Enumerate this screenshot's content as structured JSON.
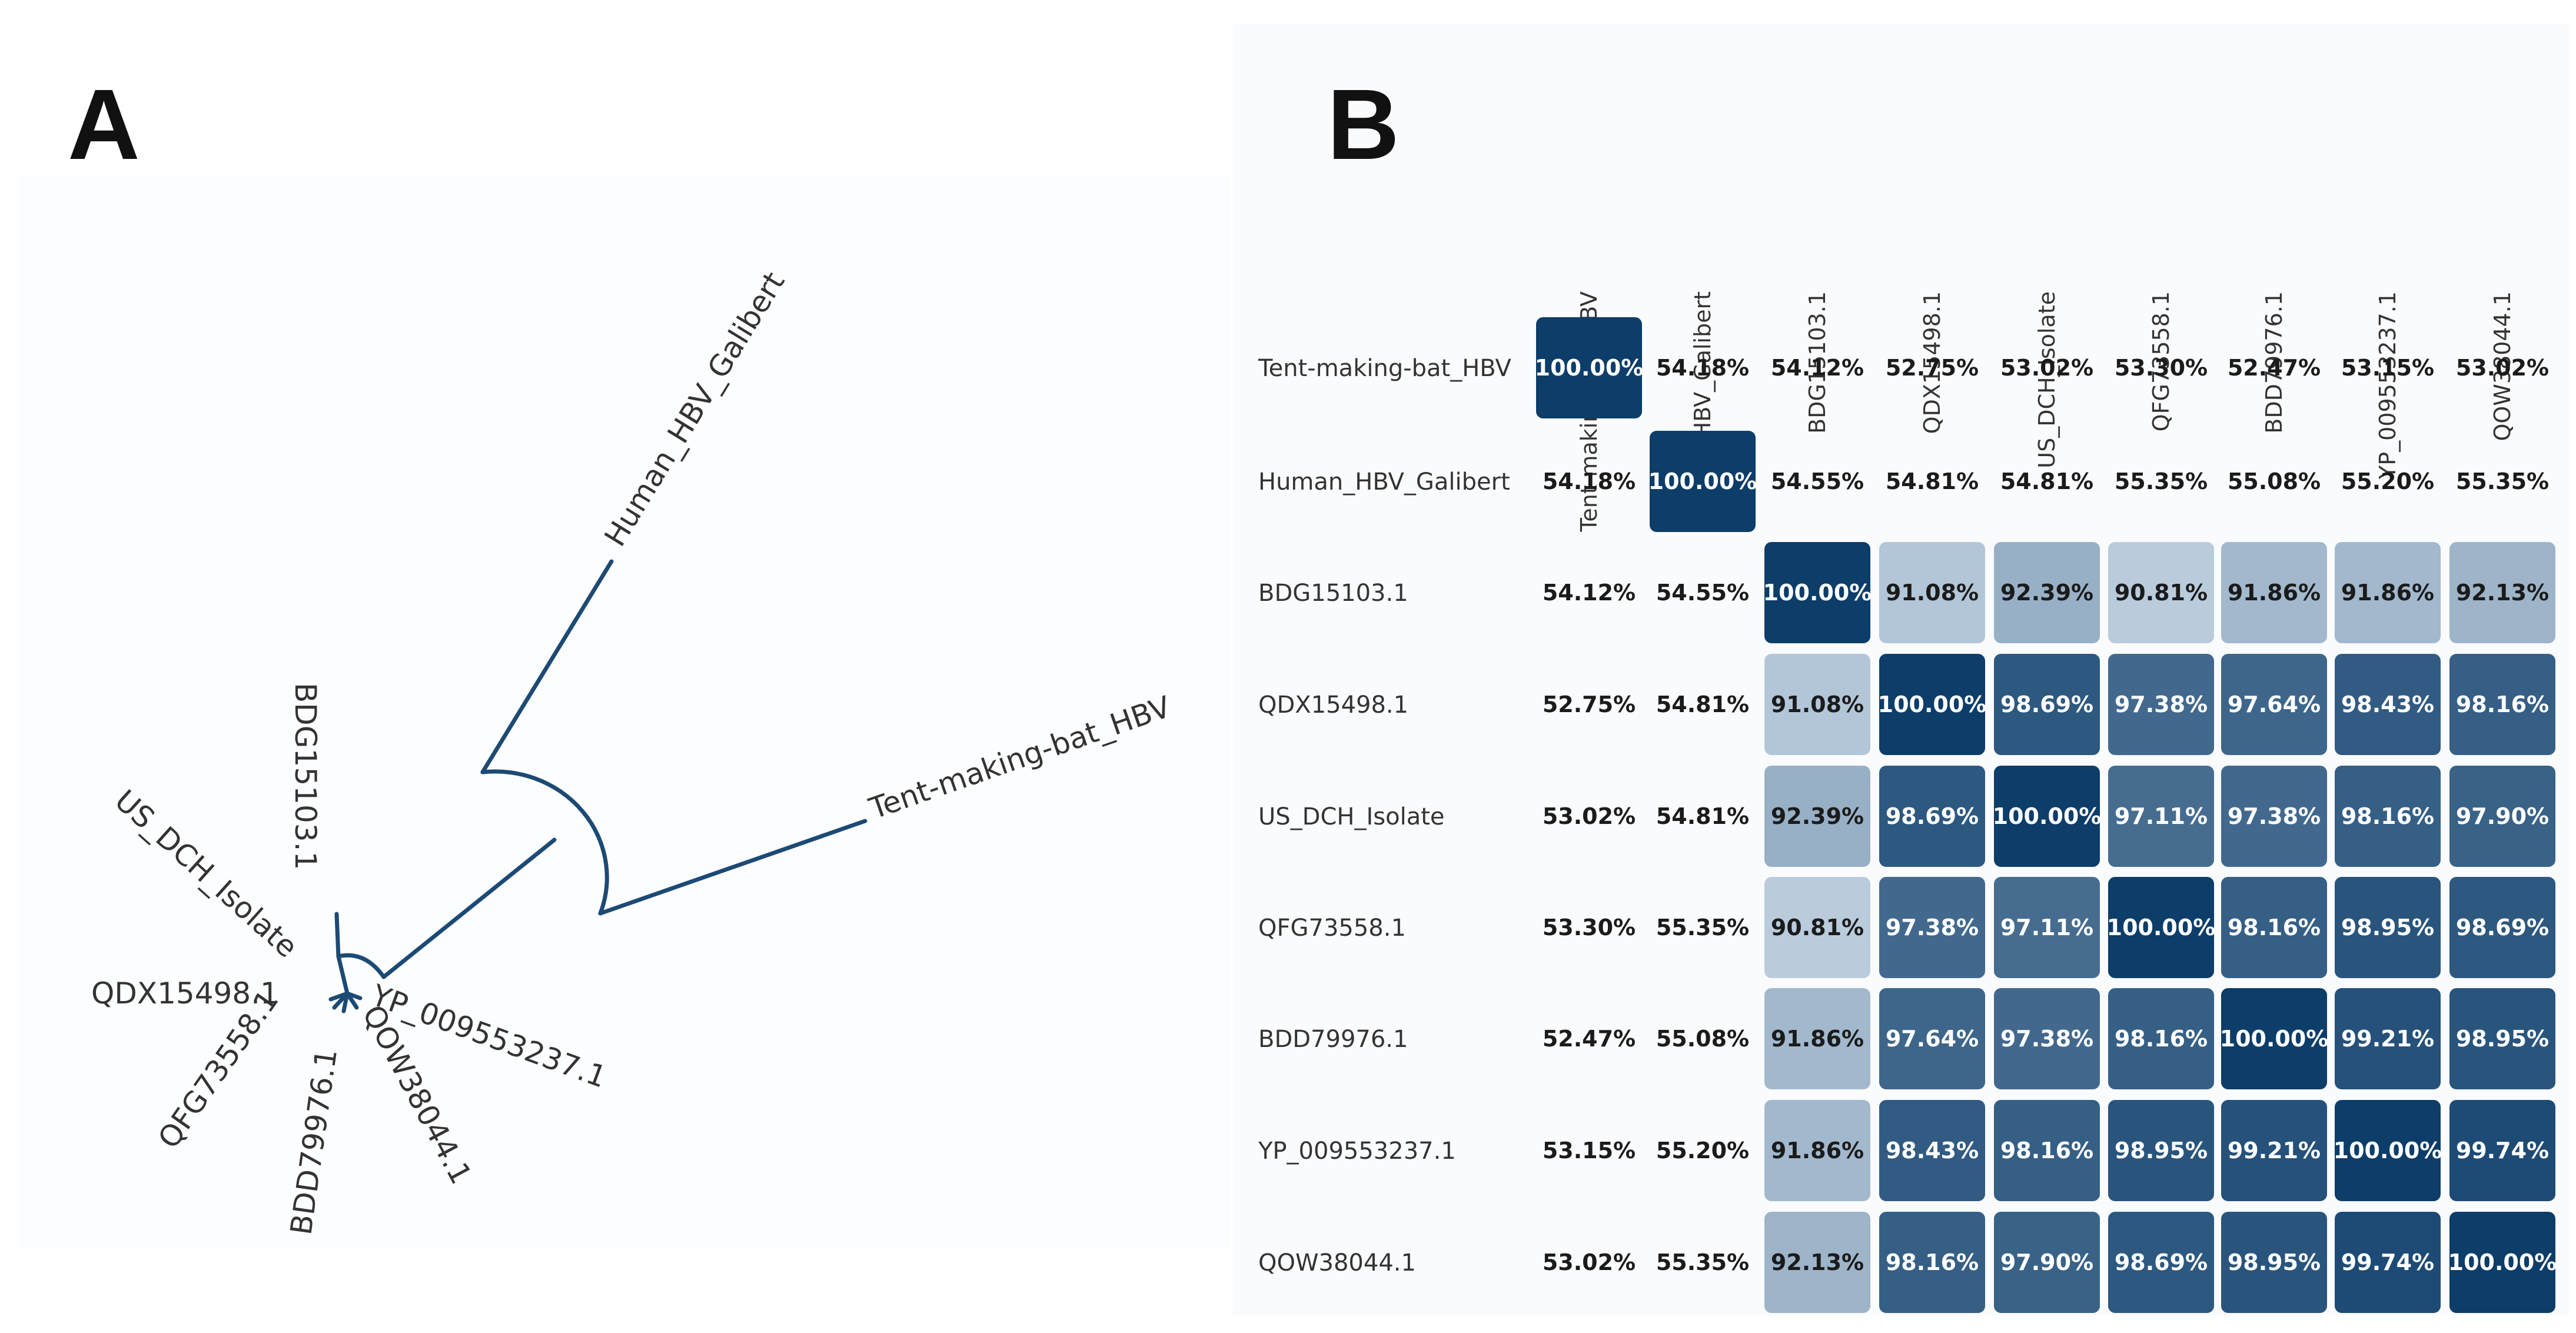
{
  "figure": {
    "panel_a_label": "A",
    "panel_b_label": "B"
  },
  "tree": {
    "labels": [
      "Human_HBV_Galibert",
      "Tent-making-bat_HBV",
      "BDG15103.1",
      "US_DCH_Isolate",
      "QDX15498.1",
      "YP_009553237.1",
      "QOW38044.1",
      "BDD79976.1",
      "QFG73558.1"
    ],
    "line_color": "#1c4a74"
  },
  "chart_data": {
    "type": "heatmap",
    "title": "",
    "value_suffix": "%",
    "rows": [
      "Tent-making-bat_HBV",
      "Human_HBV_Galibert",
      "BDG15103.1",
      "QDX15498.1",
      "US_DCH_Isolate",
      "QFG73558.1",
      "BDD79976.1",
      "YP_009553237.1",
      "QOW38044.1"
    ],
    "columns": [
      "Tent-making-bat_HBV",
      "Human_HBV_Galibert",
      "BDG15103.1",
      "QDX15498.1",
      "US_DCH_Isolate",
      "QFG73558.1",
      "BDD79976.1",
      "YP_009553237.1",
      "QOW38044.1"
    ],
    "values": [
      [
        100.0,
        54.18,
        54.12,
        52.75,
        53.02,
        53.3,
        52.47,
        53.15,
        53.02
      ],
      [
        54.18,
        100.0,
        54.55,
        54.81,
        54.81,
        55.35,
        55.08,
        55.2,
        55.35
      ],
      [
        54.12,
        54.55,
        100.0,
        91.08,
        92.39,
        90.81,
        91.86,
        91.86,
        92.13
      ],
      [
        52.75,
        54.81,
        91.08,
        100.0,
        98.69,
        97.38,
        97.64,
        98.43,
        98.16
      ],
      [
        53.02,
        54.81,
        92.39,
        98.69,
        100.0,
        97.11,
        97.38,
        98.16,
        97.9
      ],
      [
        53.3,
        55.35,
        90.81,
        97.38,
        97.11,
        100.0,
        98.16,
        98.95,
        98.69
      ],
      [
        52.47,
        55.08,
        91.86,
        97.64,
        97.38,
        98.16,
        100.0,
        99.21,
        98.95
      ],
      [
        53.15,
        55.2,
        91.86,
        98.43,
        98.16,
        98.95,
        99.21,
        100.0,
        99.74
      ],
      [
        53.02,
        55.35,
        92.13,
        98.16,
        97.9,
        98.69,
        98.95,
        99.74,
        100.0
      ]
    ],
    "colors": {
      "diagonal": "#0d3d69",
      "low": "#c3d3e2",
      "high": "#1c4a74",
      "text_dark": "#1b1b1b",
      "text_light": "#ffffff"
    }
  }
}
